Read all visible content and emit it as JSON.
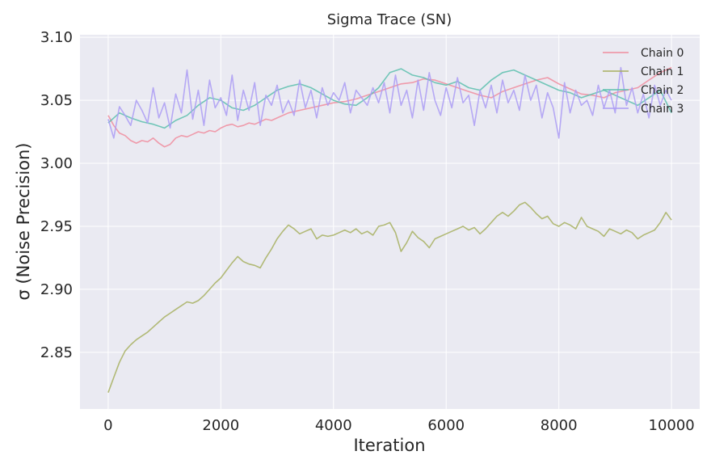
{
  "chart_data": {
    "type": "line",
    "title": "Sigma Trace (SN)",
    "xlabel": "Iteration",
    "ylabel": "σ (Noise Precision)",
    "xlim": [
      -500,
      10500
    ],
    "ylim": [
      2.805,
      3.102
    ],
    "xticks": [
      0,
      2000,
      4000,
      6000,
      8000,
      10000
    ],
    "xtick_labels": [
      "0",
      "2000",
      "4000",
      "6000",
      "8000",
      "10000"
    ],
    "yticks": [
      2.85,
      2.9,
      2.95,
      3.0,
      3.05,
      3.1
    ],
    "ytick_labels": [
      "2.85",
      "2.90",
      "2.95",
      "3.00",
      "3.05",
      "3.10"
    ],
    "grid": true,
    "legend_position": "top-right",
    "series": [
      {
        "name": "Chain 0",
        "color": "#f08c9e",
        "x": [
          0,
          100,
          200,
          300,
          400,
          500,
          600,
          700,
          800,
          900,
          1000,
          1100,
          1200,
          1300,
          1400,
          1500,
          1600,
          1700,
          1800,
          1900,
          2000,
          2100,
          2200,
          2300,
          2400,
          2500,
          2600,
          2700,
          2800,
          2900,
          3000,
          3200,
          3400,
          3600,
          3800,
          4000,
          4200,
          4400,
          4600,
          4800,
          5000,
          5200,
          5400,
          5600,
          5800,
          6000,
          6200,
          6400,
          6600,
          6800,
          7000,
          7200,
          7400,
          7600,
          7800,
          8000,
          8200,
          8400,
          8600,
          8800,
          9000,
          9200,
          9400,
          9600,
          9800,
          10000
        ],
        "values": [
          3.038,
          3.03,
          3.024,
          3.022,
          3.018,
          3.016,
          3.018,
          3.017,
          3.02,
          3.016,
          3.013,
          3.015,
          3.02,
          3.022,
          3.021,
          3.023,
          3.025,
          3.024,
          3.026,
          3.025,
          3.028,
          3.03,
          3.031,
          3.029,
          3.03,
          3.032,
          3.031,
          3.033,
          3.035,
          3.034,
          3.036,
          3.04,
          3.042,
          3.044,
          3.046,
          3.048,
          3.049,
          3.051,
          3.054,
          3.057,
          3.06,
          3.063,
          3.064,
          3.067,
          3.066,
          3.063,
          3.06,
          3.057,
          3.054,
          3.052,
          3.057,
          3.06,
          3.063,
          3.066,
          3.068,
          3.063,
          3.059,
          3.055,
          3.054,
          3.052,
          3.056,
          3.058,
          3.06,
          3.066,
          3.072,
          3.076
        ]
      },
      {
        "name": "Chain 1",
        "color": "#a7b060",
        "x": [
          0,
          100,
          200,
          300,
          400,
          500,
          600,
          700,
          800,
          900,
          1000,
          1100,
          1200,
          1300,
          1400,
          1500,
          1600,
          1700,
          1800,
          1900,
          2000,
          2100,
          2200,
          2300,
          2400,
          2500,
          2600,
          2700,
          2800,
          2900,
          3000,
          3100,
          3200,
          3300,
          3400,
          3500,
          3600,
          3700,
          3800,
          3900,
          4000,
          4100,
          4200,
          4300,
          4400,
          4500,
          4600,
          4700,
          4800,
          4900,
          5000,
          5100,
          5200,
          5300,
          5400,
          5500,
          5600,
          5700,
          5800,
          5900,
          6000,
          6100,
          6200,
          6300,
          6400,
          6500,
          6600,
          6700,
          6800,
          6900,
          7000,
          7100,
          7200,
          7300,
          7400,
          7500,
          7600,
          7700,
          7800,
          7900,
          8000,
          8100,
          8200,
          8300,
          8400,
          8500,
          8600,
          8700,
          8800,
          8900,
          9000,
          9100,
          9200,
          9300,
          9400,
          9500,
          9600,
          9700,
          9800,
          9900,
          10000
        ],
        "values": [
          2.818,
          2.83,
          2.842,
          2.851,
          2.856,
          2.86,
          2.863,
          2.866,
          2.87,
          2.874,
          2.878,
          2.881,
          2.884,
          2.887,
          2.89,
          2.889,
          2.891,
          2.895,
          2.9,
          2.905,
          2.909,
          2.915,
          2.921,
          2.926,
          2.922,
          2.92,
          2.919,
          2.917,
          2.925,
          2.932,
          2.94,
          2.946,
          2.951,
          2.948,
          2.944,
          2.946,
          2.948,
          2.94,
          2.943,
          2.942,
          2.943,
          2.945,
          2.947,
          2.945,
          2.948,
          2.944,
          2.946,
          2.943,
          2.95,
          2.951,
          2.953,
          2.945,
          2.93,
          2.937,
          2.946,
          2.941,
          2.938,
          2.933,
          2.94,
          2.942,
          2.944,
          2.946,
          2.948,
          2.95,
          2.947,
          2.949,
          2.944,
          2.948,
          2.953,
          2.958,
          2.961,
          2.958,
          2.962,
          2.967,
          2.969,
          2.965,
          2.96,
          2.956,
          2.958,
          2.952,
          2.95,
          2.953,
          2.951,
          2.948,
          2.957,
          2.95,
          2.948,
          2.946,
          2.942,
          2.948,
          2.946,
          2.944,
          2.947,
          2.945,
          2.94,
          2.943,
          2.945,
          2.947,
          2.953,
          2.961,
          2.955
        ]
      },
      {
        "name": "Chain 2",
        "color": "#5cbfae",
        "x": [
          0,
          200,
          400,
          600,
          800,
          1000,
          1200,
          1400,
          1600,
          1800,
          2000,
          2200,
          2400,
          2600,
          2800,
          3000,
          3200,
          3400,
          3600,
          3800,
          4000,
          4200,
          4400,
          4600,
          4800,
          5000,
          5200,
          5400,
          5600,
          5800,
          6000,
          6200,
          6400,
          6600,
          6800,
          7000,
          7200,
          7400,
          7600,
          7800,
          8000,
          8200,
          8400,
          8600,
          8800,
          9000,
          9200,
          9400,
          9600,
          9800,
          10000
        ],
        "values": [
          3.032,
          3.04,
          3.036,
          3.033,
          3.031,
          3.028,
          3.034,
          3.038,
          3.046,
          3.052,
          3.05,
          3.044,
          3.042,
          3.046,
          3.052,
          3.058,
          3.061,
          3.063,
          3.06,
          3.055,
          3.05,
          3.047,
          3.046,
          3.052,
          3.06,
          3.072,
          3.075,
          3.07,
          3.068,
          3.064,
          3.062,
          3.065,
          3.06,
          3.058,
          3.066,
          3.072,
          3.074,
          3.07,
          3.066,
          3.062,
          3.058,
          3.056,
          3.052,
          3.055,
          3.058,
          3.054,
          3.05,
          3.046,
          3.052,
          3.058,
          3.04
        ]
      },
      {
        "name": "Chain 3",
        "color": "#ab9cf4",
        "x": [
          0,
          100,
          200,
          300,
          400,
          500,
          600,
          700,
          800,
          900,
          1000,
          1100,
          1200,
          1300,
          1400,
          1500,
          1600,
          1700,
          1800,
          1900,
          2000,
          2100,
          2200,
          2300,
          2400,
          2500,
          2600,
          2700,
          2800,
          2900,
          3000,
          3100,
          3200,
          3300,
          3400,
          3500,
          3600,
          3700,
          3800,
          3900,
          4000,
          4100,
          4200,
          4300,
          4400,
          4500,
          4600,
          4700,
          4800,
          4900,
          5000,
          5100,
          5200,
          5300,
          5400,
          5500,
          5600,
          5700,
          5800,
          5900,
          6000,
          6100,
          6200,
          6300,
          6400,
          6500,
          6600,
          6700,
          6800,
          6900,
          7000,
          7100,
          7200,
          7300,
          7400,
          7500,
          7600,
          7700,
          7800,
          7900,
          8000,
          8100,
          8200,
          8300,
          8400,
          8500,
          8600,
          8700,
          8800,
          8900,
          9000,
          9100,
          9200,
          9300,
          9400,
          9500,
          9600,
          9700,
          9800,
          9900,
          10000
        ],
        "values": [
          3.035,
          3.02,
          3.045,
          3.038,
          3.03,
          3.05,
          3.042,
          3.032,
          3.06,
          3.036,
          3.048,
          3.028,
          3.055,
          3.04,
          3.074,
          3.035,
          3.058,
          3.03,
          3.066,
          3.044,
          3.052,
          3.038,
          3.07,
          3.034,
          3.058,
          3.042,
          3.064,
          3.03,
          3.054,
          3.046,
          3.062,
          3.04,
          3.05,
          3.038,
          3.066,
          3.044,
          3.058,
          3.036,
          3.06,
          3.046,
          3.056,
          3.05,
          3.064,
          3.04,
          3.058,
          3.052,
          3.046,
          3.06,
          3.048,
          3.064,
          3.04,
          3.07,
          3.046,
          3.058,
          3.036,
          3.066,
          3.042,
          3.072,
          3.05,
          3.038,
          3.06,
          3.044,
          3.068,
          3.048,
          3.054,
          3.03,
          3.058,
          3.044,
          3.062,
          3.04,
          3.066,
          3.048,
          3.058,
          3.042,
          3.07,
          3.05,
          3.062,
          3.036,
          3.056,
          3.044,
          3.02,
          3.064,
          3.04,
          3.058,
          3.046,
          3.05,
          3.038,
          3.062,
          3.044,
          3.058,
          3.04,
          3.076,
          3.046,
          3.06,
          3.04,
          3.055,
          3.036,
          3.062,
          3.046,
          3.058,
          3.05
        ]
      }
    ]
  }
}
